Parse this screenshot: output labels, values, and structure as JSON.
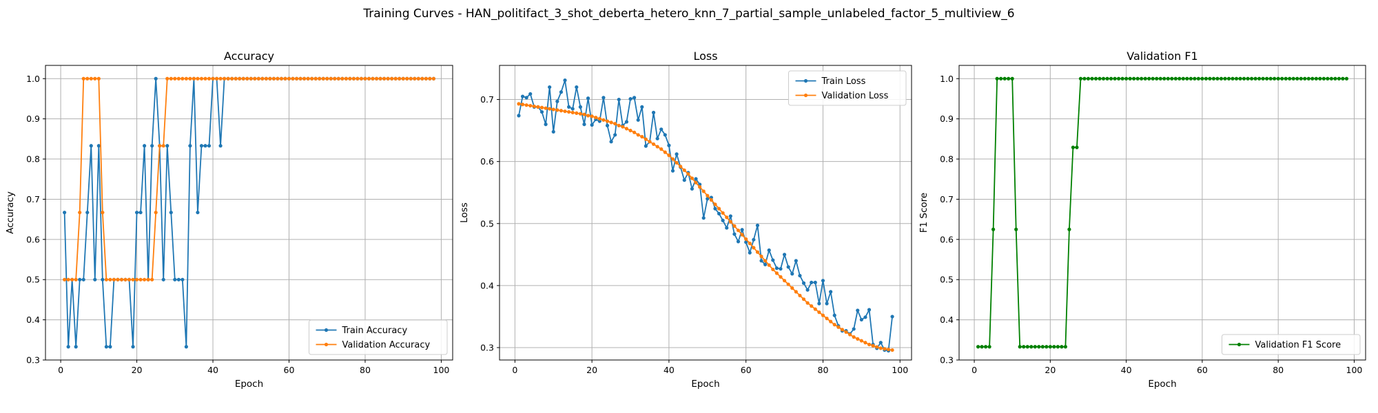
{
  "suptitle": "Training Curves - HAN_politifact_3_shot_deberta_hetero_knn_7_partial_sample_unlabeled_factor_5_multiview_6",
  "chart_data": [
    {
      "type": "line",
      "title": "Accuracy",
      "xlabel": "Epoch",
      "ylabel": "Accuracy",
      "xlim": [
        -4,
        103
      ],
      "ylim": [
        0.3,
        1.033
      ],
      "xticks": [
        0,
        20,
        40,
        60,
        80,
        100
      ],
      "yticks": [
        0.3,
        0.4,
        0.5,
        0.6,
        0.7,
        0.8,
        0.9,
        1.0
      ],
      "grid": true,
      "legend": "lower-right",
      "series": [
        {
          "name": "Train Accuracy",
          "color": "#1f77b4",
          "x": [
            1,
            2,
            3,
            4,
            5,
            6,
            7,
            8,
            9,
            10,
            11,
            12,
            13,
            14,
            15,
            16,
            17,
            18,
            19,
            20,
            21,
            22,
            23,
            24,
            25,
            26,
            27,
            28,
            29,
            30,
            31,
            32,
            33,
            34,
            35,
            36,
            37,
            38,
            39,
            40,
            41,
            42,
            43,
            44,
            45,
            46,
            47,
            48,
            49,
            50,
            51,
            52,
            53,
            54,
            55,
            56,
            57,
            58,
            59,
            60,
            61,
            62,
            63,
            64,
            65,
            66,
            67,
            68,
            69,
            70,
            71,
            72,
            73,
            74,
            75,
            76,
            77,
            78,
            79,
            80,
            81,
            82,
            83,
            84,
            85,
            86,
            87,
            88,
            89,
            90,
            91,
            92,
            93,
            94,
            95,
            96,
            97,
            98
          ],
          "y": [
            0.667,
            0.333,
            0.5,
            0.333,
            0.5,
            0.5,
            0.667,
            0.833,
            0.5,
            0.833,
            0.5,
            0.333,
            0.333,
            0.5,
            0.5,
            0.5,
            0.5,
            0.5,
            0.333,
            0.667,
            0.667,
            0.833,
            0.5,
            0.833,
            1.0,
            0.833,
            0.5,
            0.833,
            0.667,
            0.5,
            0.5,
            0.5,
            0.333,
            0.833,
            1.0,
            0.667,
            0.833,
            0.833,
            0.833,
            1.0,
            1.0,
            0.833,
            1.0,
            1.0,
            1.0,
            1.0,
            1.0,
            1.0,
            1.0,
            1.0,
            1.0,
            1.0,
            1.0,
            1.0,
            1.0,
            1.0,
            1.0,
            1.0,
            1.0,
            1.0,
            1.0,
            1.0,
            1.0,
            1.0,
            1.0,
            1.0,
            1.0,
            1.0,
            1.0,
            1.0,
            1.0,
            1.0,
            1.0,
            1.0,
            1.0,
            1.0,
            1.0,
            1.0,
            1.0,
            1.0,
            1.0,
            1.0,
            1.0,
            1.0,
            1.0,
            1.0,
            1.0,
            1.0,
            1.0,
            1.0,
            1.0,
            1.0,
            1.0,
            1.0,
            1.0,
            1.0,
            1.0,
            1.0
          ]
        },
        {
          "name": "Validation Accuracy",
          "color": "#ff7f0e",
          "x": [
            1,
            2,
            3,
            4,
            5,
            6,
            7,
            8,
            9,
            10,
            11,
            12,
            13,
            14,
            15,
            16,
            17,
            18,
            19,
            20,
            21,
            22,
            23,
            24,
            25,
            26,
            27,
            28,
            29,
            30,
            31,
            32,
            33,
            34,
            35,
            36,
            37,
            38,
            39,
            40,
            41,
            42,
            43,
            44,
            45,
            46,
            47,
            48,
            49,
            50,
            51,
            52,
            53,
            54,
            55,
            56,
            57,
            58,
            59,
            60,
            61,
            62,
            63,
            64,
            65,
            66,
            67,
            68,
            69,
            70,
            71,
            72,
            73,
            74,
            75,
            76,
            77,
            78,
            79,
            80,
            81,
            82,
            83,
            84,
            85,
            86,
            87,
            88,
            89,
            90,
            91,
            92,
            93,
            94,
            95,
            96,
            97,
            98
          ],
          "y": [
            0.5,
            0.5,
            0.5,
            0.5,
            0.667,
            1.0,
            1.0,
            1.0,
            1.0,
            1.0,
            0.667,
            0.5,
            0.5,
            0.5,
            0.5,
            0.5,
            0.5,
            0.5,
            0.5,
            0.5,
            0.5,
            0.5,
            0.5,
            0.5,
            0.667,
            0.833,
            0.833,
            1.0,
            1.0,
            1.0,
            1.0,
            1.0,
            1.0,
            1.0,
            1.0,
            1.0,
            1.0,
            1.0,
            1.0,
            1.0,
            1.0,
            1.0,
            1.0,
            1.0,
            1.0,
            1.0,
            1.0,
            1.0,
            1.0,
            1.0,
            1.0,
            1.0,
            1.0,
            1.0,
            1.0,
            1.0,
            1.0,
            1.0,
            1.0,
            1.0,
            1.0,
            1.0,
            1.0,
            1.0,
            1.0,
            1.0,
            1.0,
            1.0,
            1.0,
            1.0,
            1.0,
            1.0,
            1.0,
            1.0,
            1.0,
            1.0,
            1.0,
            1.0,
            1.0,
            1.0,
            1.0,
            1.0,
            1.0,
            1.0,
            1.0,
            1.0,
            1.0,
            1.0,
            1.0,
            1.0,
            1.0,
            1.0,
            1.0,
            1.0,
            1.0,
            1.0,
            1.0,
            1.0
          ]
        }
      ]
    },
    {
      "type": "line",
      "title": "Loss",
      "xlabel": "Epoch",
      "ylabel": "Loss",
      "xlim": [
        -4,
        103
      ],
      "ylim": [
        0.28,
        0.755
      ],
      "xticks": [
        0,
        20,
        40,
        60,
        80,
        100
      ],
      "yticks": [
        0.3,
        0.4,
        0.5,
        0.6,
        0.7
      ],
      "grid": true,
      "legend": "top-right",
      "series": [
        {
          "name": "Train Loss",
          "color": "#1f77b4",
          "x": [
            1,
            2,
            3,
            4,
            5,
            6,
            7,
            8,
            9,
            10,
            11,
            12,
            13,
            14,
            15,
            16,
            17,
            18,
            19,
            20,
            21,
            22,
            23,
            24,
            25,
            26,
            27,
            28,
            29,
            30,
            31,
            32,
            33,
            34,
            35,
            36,
            37,
            38,
            39,
            40,
            41,
            42,
            43,
            44,
            45,
            46,
            47,
            48,
            49,
            50,
            51,
            52,
            53,
            54,
            55,
            56,
            57,
            58,
            59,
            60,
            61,
            62,
            63,
            64,
            65,
            66,
            67,
            68,
            69,
            70,
            71,
            72,
            73,
            74,
            75,
            76,
            77,
            78,
            79,
            80,
            81,
            82,
            83,
            84,
            85,
            86,
            87,
            88,
            89,
            90,
            91,
            92,
            93,
            94,
            95,
            96,
            97,
            98
          ],
          "y": [
            0.674,
            0.705,
            0.703,
            0.709,
            0.688,
            0.688,
            0.68,
            0.66,
            0.72,
            0.648,
            0.697,
            0.712,
            0.731,
            0.688,
            0.685,
            0.72,
            0.688,
            0.66,
            0.702,
            0.659,
            0.668,
            0.665,
            0.703,
            0.658,
            0.632,
            0.643,
            0.7,
            0.658,
            0.664,
            0.701,
            0.703,
            0.667,
            0.688,
            0.625,
            0.632,
            0.679,
            0.637,
            0.652,
            0.643,
            0.626,
            0.585,
            0.612,
            0.591,
            0.57,
            0.582,
            0.556,
            0.572,
            0.563,
            0.509,
            0.54,
            0.542,
            0.524,
            0.516,
            0.505,
            0.493,
            0.512,
            0.483,
            0.471,
            0.49,
            0.47,
            0.453,
            0.474,
            0.497,
            0.44,
            0.434,
            0.457,
            0.441,
            0.428,
            0.427,
            0.45,
            0.43,
            0.419,
            0.44,
            0.416,
            0.404,
            0.393,
            0.405,
            0.405,
            0.371,
            0.408,
            0.371,
            0.39,
            0.352,
            0.335,
            0.327,
            0.327,
            0.322,
            0.33,
            0.36,
            0.345,
            0.349,
            0.361,
            0.305,
            0.299,
            0.308,
            0.296,
            0.295,
            0.35
          ]
        },
        {
          "name": "Validation Loss",
          "color": "#ff7f0e",
          "x": [
            1,
            2,
            3,
            4,
            5,
            6,
            7,
            8,
            9,
            10,
            11,
            12,
            13,
            14,
            15,
            16,
            17,
            18,
            19,
            20,
            21,
            22,
            23,
            24,
            25,
            26,
            27,
            28,
            29,
            30,
            31,
            32,
            33,
            34,
            35,
            36,
            37,
            38,
            39,
            40,
            41,
            42,
            43,
            44,
            45,
            46,
            47,
            48,
            49,
            50,
            51,
            52,
            53,
            54,
            55,
            56,
            57,
            58,
            59,
            60,
            61,
            62,
            63,
            64,
            65,
            66,
            67,
            68,
            69,
            70,
            71,
            72,
            73,
            74,
            75,
            76,
            77,
            78,
            79,
            80,
            81,
            82,
            83,
            84,
            85,
            86,
            87,
            88,
            89,
            90,
            91,
            92,
            93,
            94,
            95,
            96,
            97,
            98
          ],
          "y": [
            0.693,
            0.692,
            0.691,
            0.69,
            0.689,
            0.688,
            0.687,
            0.686,
            0.685,
            0.684,
            0.683,
            0.682,
            0.681,
            0.68,
            0.679,
            0.678,
            0.677,
            0.676,
            0.674,
            0.673,
            0.671,
            0.669,
            0.667,
            0.665,
            0.663,
            0.661,
            0.658,
            0.656,
            0.653,
            0.65,
            0.647,
            0.643,
            0.64,
            0.636,
            0.632,
            0.628,
            0.624,
            0.62,
            0.615,
            0.61,
            0.604,
            0.598,
            0.592,
            0.586,
            0.58,
            0.573,
            0.566,
            0.559,
            0.552,
            0.545,
            0.538,
            0.531,
            0.524,
            0.517,
            0.51,
            0.503,
            0.496,
            0.489,
            0.482,
            0.475,
            0.468,
            0.461,
            0.454,
            0.447,
            0.44,
            0.433,
            0.426,
            0.42,
            0.414,
            0.408,
            0.402,
            0.396,
            0.39,
            0.384,
            0.378,
            0.372,
            0.367,
            0.362,
            0.357,
            0.352,
            0.347,
            0.342,
            0.337,
            0.333,
            0.329,
            0.325,
            0.321,
            0.317,
            0.314,
            0.311,
            0.308,
            0.305,
            0.303,
            0.301,
            0.299,
            0.298,
            0.297,
            0.296
          ]
        }
      ]
    },
    {
      "type": "line",
      "title": "Validation F1",
      "xlabel": "Epoch",
      "ylabel": "F1 Score",
      "xlim": [
        -4,
        103
      ],
      "ylim": [
        0.3,
        1.033
      ],
      "xticks": [
        0,
        20,
        40,
        60,
        80,
        100
      ],
      "yticks": [
        0.3,
        0.4,
        0.5,
        0.6,
        0.7,
        0.8,
        0.9,
        1.0
      ],
      "grid": true,
      "legend": "lower-right",
      "series": [
        {
          "name": "Validation F1 Score",
          "color": "#008000",
          "x": [
            1,
            2,
            3,
            4,
            5,
            6,
            7,
            8,
            9,
            10,
            11,
            12,
            13,
            14,
            15,
            16,
            17,
            18,
            19,
            20,
            21,
            22,
            23,
            24,
            25,
            26,
            27,
            28,
            29,
            30,
            31,
            32,
            33,
            34,
            35,
            36,
            37,
            38,
            39,
            40,
            41,
            42,
            43,
            44,
            45,
            46,
            47,
            48,
            49,
            50,
            51,
            52,
            53,
            54,
            55,
            56,
            57,
            58,
            59,
            60,
            61,
            62,
            63,
            64,
            65,
            66,
            67,
            68,
            69,
            70,
            71,
            72,
            73,
            74,
            75,
            76,
            77,
            78,
            79,
            80,
            81,
            82,
            83,
            84,
            85,
            86,
            87,
            88,
            89,
            90,
            91,
            92,
            93,
            94,
            95,
            96,
            97,
            98
          ],
          "y": [
            0.333,
            0.333,
            0.333,
            0.333,
            0.625,
            1.0,
            1.0,
            1.0,
            1.0,
            1.0,
            0.625,
            0.333,
            0.333,
            0.333,
            0.333,
            0.333,
            0.333,
            0.333,
            0.333,
            0.333,
            0.333,
            0.333,
            0.333,
            0.333,
            0.625,
            0.829,
            0.829,
            1.0,
            1.0,
            1.0,
            1.0,
            1.0,
            1.0,
            1.0,
            1.0,
            1.0,
            1.0,
            1.0,
            1.0,
            1.0,
            1.0,
            1.0,
            1.0,
            1.0,
            1.0,
            1.0,
            1.0,
            1.0,
            1.0,
            1.0,
            1.0,
            1.0,
            1.0,
            1.0,
            1.0,
            1.0,
            1.0,
            1.0,
            1.0,
            1.0,
            1.0,
            1.0,
            1.0,
            1.0,
            1.0,
            1.0,
            1.0,
            1.0,
            1.0,
            1.0,
            1.0,
            1.0,
            1.0,
            1.0,
            1.0,
            1.0,
            1.0,
            1.0,
            1.0,
            1.0,
            1.0,
            1.0,
            1.0,
            1.0,
            1.0,
            1.0,
            1.0,
            1.0,
            1.0,
            1.0,
            1.0,
            1.0,
            1.0,
            1.0,
            1.0,
            1.0,
            1.0,
            1.0
          ]
        }
      ]
    }
  ]
}
